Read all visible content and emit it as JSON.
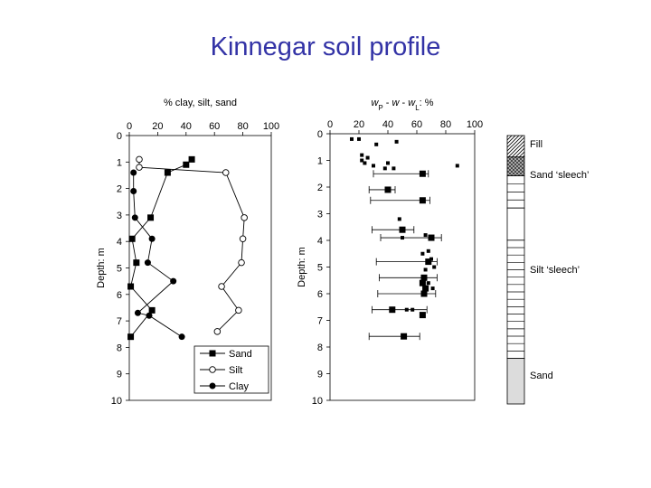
{
  "title": "Kinnegar soil profile",
  "chart_data": [
    {
      "type": "line",
      "title": "",
      "xlabel": "% clay, silt, sand",
      "ylabel": "Depth: m",
      "xlim": [
        0,
        100
      ],
      "ylim": [
        0,
        10
      ],
      "x_ticks": [
        0,
        20,
        40,
        60,
        80,
        100
      ],
      "y_ticks": [
        0,
        1,
        2,
        3,
        4,
        5,
        6,
        7,
        8,
        9,
        10
      ],
      "y_inverted": true,
      "legend": "bottom-right",
      "series": [
        {
          "name": "Sand",
          "marker": "square-filled",
          "points": [
            [
              44,
              0.9
            ],
            [
              40,
              1.1
            ],
            [
              27,
              1.4
            ],
            [
              15,
              3.1
            ],
            [
              2,
              3.9
            ],
            [
              5,
              4.8
            ],
            [
              1,
              5.7
            ],
            [
              16,
              6.6
            ],
            [
              1,
              7.6
            ]
          ]
        },
        {
          "name": "Silt",
          "marker": "circle-open",
          "points": [
            [
              7,
              0.9
            ],
            [
              7,
              1.2
            ],
            [
              68,
              1.4
            ],
            [
              81,
              3.1
            ],
            [
              80,
              3.9
            ],
            [
              79,
              4.8
            ],
            [
              65,
              5.7
            ],
            [
              77,
              6.6
            ],
            [
              62,
              7.4
            ]
          ]
        },
        {
          "name": "Clay",
          "marker": "circle-filled",
          "points": [
            [
              3,
              1.4
            ],
            [
              3,
              2.1
            ],
            [
              4,
              3.1
            ],
            [
              16,
              3.9
            ],
            [
              13,
              4.8
            ],
            [
              31,
              5.5
            ],
            [
              6,
              6.7
            ],
            [
              14,
              6.8
            ],
            [
              37,
              7.6
            ]
          ]
        }
      ]
    },
    {
      "type": "scatter",
      "title": "",
      "xlabel": "w_P - w - w_L: %",
      "xlabel_parts": [
        "w",
        "P",
        " - ",
        "w",
        " - ",
        "w",
        "L",
        ": %"
      ],
      "ylabel": "Depth: m",
      "xlim": [
        0,
        100
      ],
      "ylim": [
        0,
        10
      ],
      "x_ticks": [
        0,
        20,
        40,
        60,
        80,
        100
      ],
      "y_ticks": [
        0,
        1,
        2,
        3,
        4,
        5,
        6,
        7,
        8,
        9,
        10
      ],
      "y_inverted": true,
      "water_content_large": [
        [
          64,
          1.5
        ],
        [
          40,
          2.1
        ],
        [
          64,
          2.5
        ],
        [
          50,
          3.6
        ],
        [
          70,
          3.9
        ],
        [
          68,
          4.8
        ],
        [
          65,
          5.4
        ],
        [
          64,
          5.6
        ],
        [
          66,
          5.8
        ],
        [
          65,
          6.0
        ],
        [
          43,
          6.6
        ],
        [
          64,
          6.8
        ],
        [
          51,
          7.6
        ]
      ],
      "water_content_small": [
        [
          15,
          0.2
        ],
        [
          20,
          0.2
        ],
        [
          32,
          0.4
        ],
        [
          46,
          0.3
        ],
        [
          22,
          0.8
        ],
        [
          26,
          0.9
        ],
        [
          22,
          1.0
        ],
        [
          24,
          1.1
        ],
        [
          30,
          1.2
        ],
        [
          40,
          1.1
        ],
        [
          44,
          1.3
        ],
        [
          38,
          1.3
        ],
        [
          88,
          1.2
        ],
        [
          48,
          3.2
        ],
        [
          50,
          3.9
        ],
        [
          66,
          3.8
        ],
        [
          68,
          4.4
        ],
        [
          64,
          4.5
        ],
        [
          70,
          4.7
        ],
        [
          72,
          5.0
        ],
        [
          66,
          5.1
        ],
        [
          68,
          5.6
        ],
        [
          71,
          5.8
        ],
        [
          53,
          6.6
        ],
        [
          57,
          6.6
        ]
      ],
      "limit_ranges": [
        {
          "depth": 1.5,
          "wp": 30,
          "wl": 68
        },
        {
          "depth": 2.1,
          "wp": 27,
          "wl": 45
        },
        {
          "depth": 2.5,
          "wp": 28,
          "wl": 69
        },
        {
          "depth": 3.6,
          "wp": 29,
          "wl": 58
        },
        {
          "depth": 3.9,
          "wp": 35,
          "wl": 77
        },
        {
          "depth": 4.8,
          "wp": 32,
          "wl": 74
        },
        {
          "depth": 5.4,
          "wp": 34,
          "wl": 74
        },
        {
          "depth": 6.0,
          "wp": 33,
          "wl": 73
        },
        {
          "depth": 6.6,
          "wp": 29,
          "wl": 67
        },
        {
          "depth": 7.6,
          "wp": 27,
          "wl": 62
        }
      ]
    },
    {
      "type": "table",
      "title": "",
      "layers": [
        {
          "name": "Fill",
          "top": 0.0,
          "bottom": 0.8,
          "pattern": "diagonal"
        },
        {
          "name": "Sand ‘sleech’",
          "top": 0.8,
          "bottom": 1.5,
          "pattern": "crosshatch"
        },
        {
          "name": "",
          "top": 1.5,
          "bottom": 2.7,
          "pattern": "horizontal"
        },
        {
          "name": "",
          "top": 2.7,
          "bottom": 3.9,
          "pattern": "none"
        },
        {
          "name": "Silt ‘sleech’",
          "top": 3.9,
          "bottom": 8.3,
          "pattern": "horizontal"
        },
        {
          "name": "Sand",
          "top": 8.3,
          "bottom": 10.0,
          "pattern": "grey"
        }
      ]
    }
  ]
}
